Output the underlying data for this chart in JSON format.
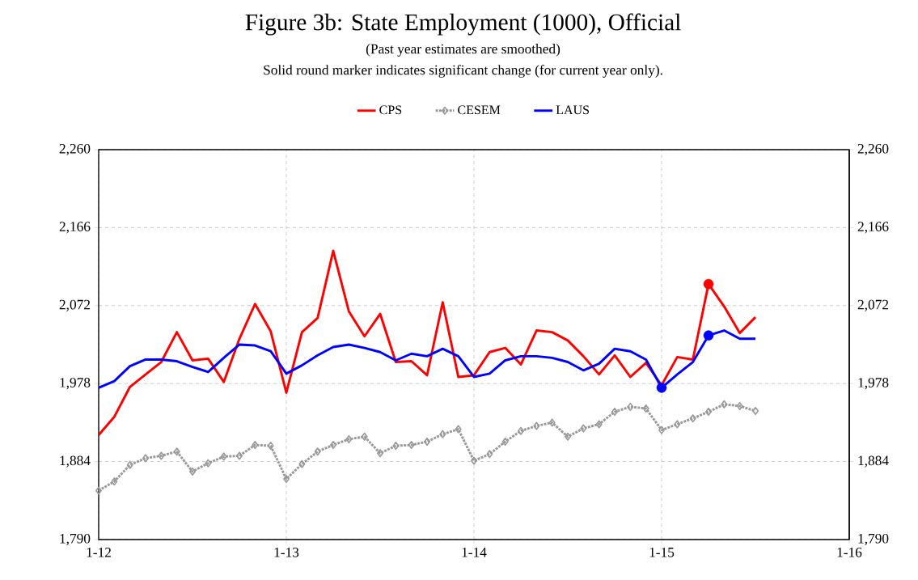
{
  "chart_data": {
    "type": "line",
    "title": "Figure 3b: State Employment (1000), Official",
    "subtitle": "(Past year estimates are smoothed)",
    "annotations": [
      "Solid round marker indicates significant change (for current year only)."
    ],
    "x": [
      "2012-01",
      "2012-02",
      "2012-03",
      "2012-04",
      "2012-05",
      "2012-06",
      "2012-07",
      "2012-08",
      "2012-09",
      "2012-10",
      "2012-11",
      "2012-12",
      "2013-01",
      "2013-02",
      "2013-03",
      "2013-04",
      "2013-05",
      "2013-06",
      "2013-07",
      "2013-08",
      "2013-09",
      "2013-10",
      "2013-11",
      "2013-12",
      "2014-01",
      "2014-02",
      "2014-03",
      "2014-04",
      "2014-05",
      "2014-06",
      "2014-07",
      "2014-08",
      "2014-09",
      "2014-10",
      "2014-11",
      "2014-12",
      "2015-01",
      "2015-02",
      "2015-03",
      "2015-04",
      "2015-05",
      "2015-06",
      "2015-07"
    ],
    "series": [
      {
        "name": "CPS",
        "color": "#ff0000",
        "marker": "none",
        "line_style": "solid",
        "values": [
          1916,
          1938,
          1974,
          1989,
          2004,
          2040,
          2006,
          2008,
          1980,
          2032,
          2074,
          2041,
          1967,
          2040,
          2057,
          2138,
          2065,
          2035,
          2062,
          2004,
          2005,
          1988,
          2076,
          1986,
          1988,
          2016,
          2021,
          2001,
          2042,
          2040,
          2030,
          2011,
          1989,
          2012,
          1986,
          2003,
          1976,
          2010,
          2007,
          2098,
          2071,
          2039,
          2058
        ]
      },
      {
        "name": "CESEM",
        "color": "#999999",
        "marker": "diamond",
        "line_style": "dotted",
        "values": [
          1849,
          1860,
          1880,
          1888,
          1891,
          1896,
          1872,
          1882,
          1890,
          1891,
          1904,
          1903,
          1863,
          1881,
          1896,
          1904,
          1911,
          1914,
          1894,
          1903,
          1904,
          1908,
          1917,
          1923,
          1885,
          1893,
          1908,
          1921,
          1927,
          1931,
          1914,
          1924,
          1929,
          1944,
          1950,
          1948,
          1922,
          1929,
          1936,
          1944,
          1953,
          1951,
          1945
        ]
      },
      {
        "name": "LAUS",
        "color": "#0000ff",
        "marker": "none",
        "line_style": "solid",
        "values": [
          1973,
          1981,
          1999,
          2007,
          2007,
          2005,
          1998,
          1992,
          2009,
          2025,
          2024,
          2017,
          1990,
          2000,
          2012,
          2022,
          2025,
          2021,
          2016,
          2006,
          2014,
          2011,
          2020,
          2011,
          1986,
          1990,
          2006,
          2011,
          2011,
          2009,
          2004,
          1994,
          2002,
          2020,
          2017,
          2007,
          1973,
          1989,
          2004,
          2036,
          2042,
          2032,
          2032
        ]
      },
      {
        "type": "scatter",
        "color": "#ff0000",
        "marker": "circle",
        "x": [
          "2015-04"
        ],
        "values": [
          2098
        ]
      },
      {
        "type": "scatter",
        "color": "#0000ff",
        "marker": "circle",
        "x": [
          "2015-01",
          "2015-04"
        ],
        "values": [
          1973,
          2036
        ]
      }
    ],
    "xlim": [
      "2012-01",
      "2016-01"
    ],
    "xticks": [
      {
        "value": "2012-01",
        "label": "1-12"
      },
      {
        "value": "2013-01",
        "label": "1-13"
      },
      {
        "value": "2014-01",
        "label": "1-14"
      },
      {
        "value": "2015-01",
        "label": "1-15"
      },
      {
        "value": "2016-01",
        "label": "1-16"
      }
    ],
    "ylim": [
      1790,
      2260
    ],
    "yticks": [
      {
        "value": 1790,
        "label": "1,790"
      },
      {
        "value": 1884,
        "label": "1,884"
      },
      {
        "value": 1978,
        "label": "1,978"
      },
      {
        "value": 2072,
        "label": "2,072"
      },
      {
        "value": 2166,
        "label": "2,166"
      },
      {
        "value": 2260,
        "label": "2,260"
      }
    ],
    "y2lim": [
      1790,
      2260
    ],
    "y2ticks": [
      {
        "value": 1790,
        "label": "1,790"
      },
      {
        "value": 1884,
        "label": "1,884"
      },
      {
        "value": 1978,
        "label": "1,978"
      },
      {
        "value": 2072,
        "label": "2,072"
      },
      {
        "value": 2166,
        "label": "2,166"
      },
      {
        "value": 2260,
        "label": "2,260"
      }
    ],
    "grid": true,
    "legend": "top"
  }
}
